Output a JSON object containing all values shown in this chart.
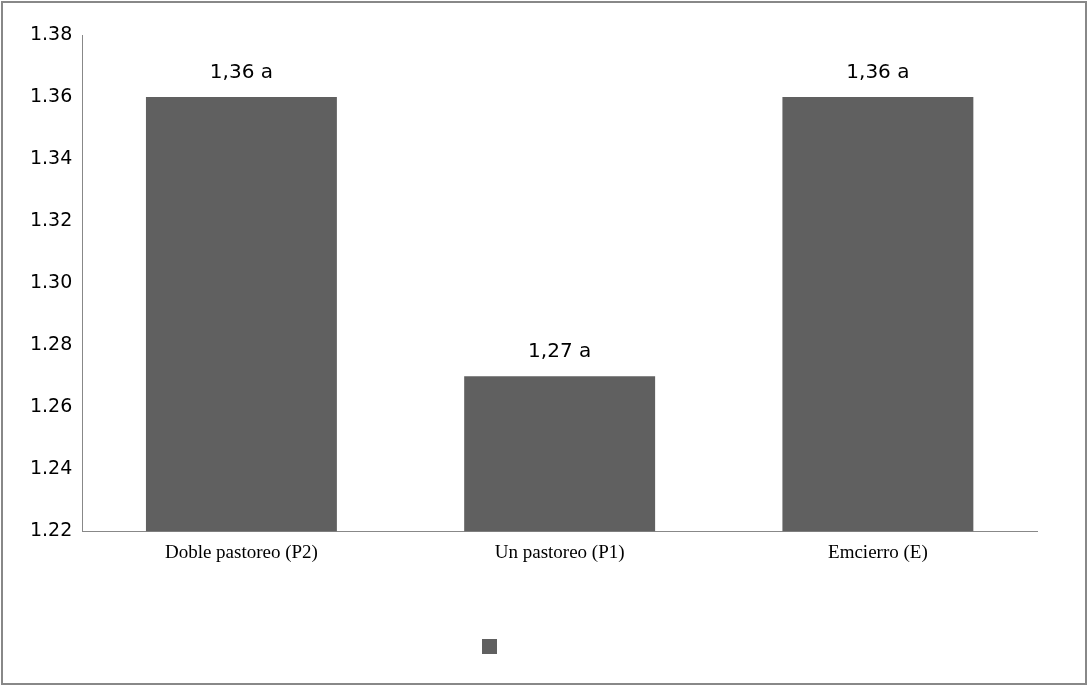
{
  "chart_data": {
    "type": "bar",
    "categories": [
      "Doble pastoreo (P2)",
      "Un pastoreo (P1)",
      "Emcierro (E)"
    ],
    "series": [
      {
        "color": "#606060",
        "values": [
          1.36,
          1.27,
          1.36
        ],
        "value_labels": [
          "1,36 a",
          "1,27 a",
          "1,36 a"
        ]
      }
    ],
    "ylim": [
      1.22,
      1.38
    ],
    "yticks": [
      {
        "value": 1.22,
        "label": "1.22"
      },
      {
        "value": 1.24,
        "label": "1.24"
      },
      {
        "value": 1.26,
        "label": "1.26"
      },
      {
        "value": 1.28,
        "label": "1.28"
      },
      {
        "value": 1.3,
        "label": "1.30"
      },
      {
        "value": 1.32,
        "label": "1.32"
      },
      {
        "value": 1.34,
        "label": "1.34"
      },
      {
        "value": 1.36,
        "label": "1.36"
      },
      {
        "value": 1.38,
        "label": "1.38"
      }
    ],
    "grid": false
  }
}
